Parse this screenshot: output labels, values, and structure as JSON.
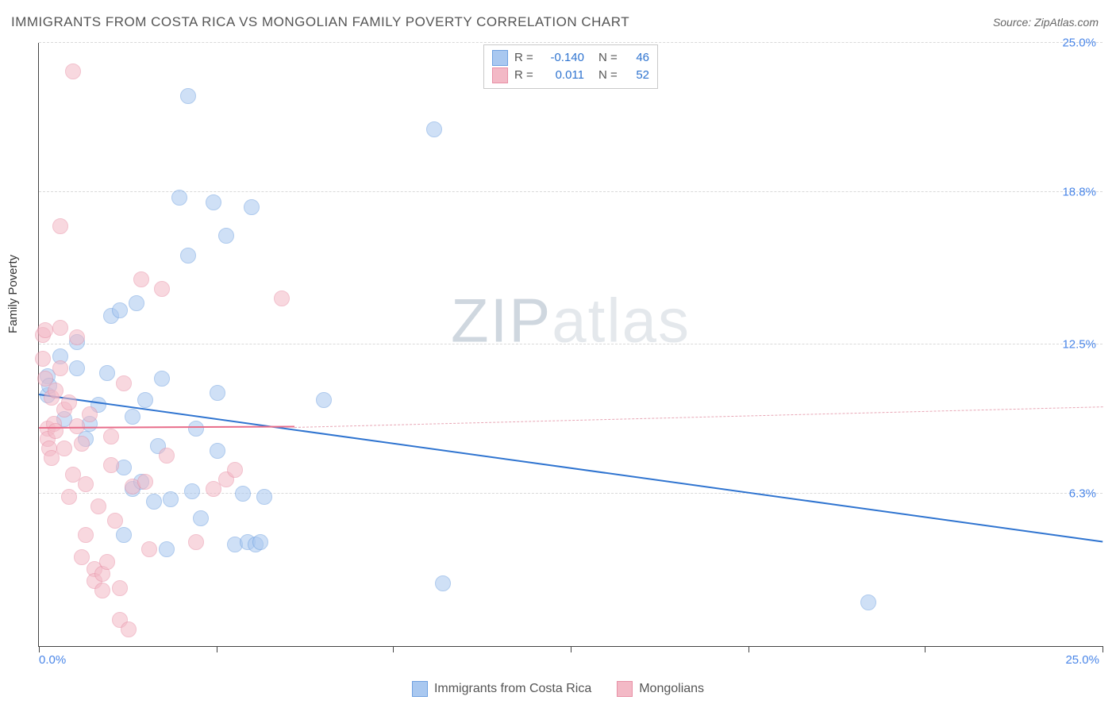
{
  "title": "IMMIGRANTS FROM COSTA RICA VS MONGOLIAN FAMILY POVERTY CORRELATION CHART",
  "source": "Source: ZipAtlas.com",
  "ylabel": "Family Poverty",
  "watermark_a": "ZIP",
  "watermark_b": "atlas",
  "chart": {
    "type": "scatter",
    "background_color": "#ffffff",
    "grid_color": "#d9d9d9",
    "axis_color": "#444444",
    "label_color": "#4a86e8",
    "xlim": [
      0,
      25
    ],
    "ylim": [
      0,
      25
    ],
    "y_ticks": [
      6.3,
      12.5,
      18.8,
      25.0
    ],
    "y_tick_labels": [
      "6.3%",
      "12.5%",
      "18.8%",
      "25.0%"
    ],
    "x_ticks": [
      0,
      4.17,
      8.33,
      12.5,
      16.67,
      20.83,
      25.0
    ],
    "x_min_label": "0.0%",
    "x_max_label": "25.0%",
    "marker_radius": 9,
    "marker_opacity": 0.55,
    "series": [
      {
        "name": "Immigrants from Costa Rica",
        "color_fill": "#a9c8f0",
        "color_stroke": "#6ea0e0",
        "R": "-0.140",
        "N": "46",
        "trend": {
          "x1": 0,
          "y1": 10.4,
          "x2": 25,
          "y2": 4.3,
          "color": "#2f74d0",
          "width": 2,
          "dash": false
        },
        "points": [
          [
            0.2,
            10.4
          ],
          [
            0.2,
            11.2
          ],
          [
            0.25,
            10.8
          ],
          [
            0.5,
            12.0
          ],
          [
            0.9,
            11.5
          ],
          [
            0.9,
            12.6
          ],
          [
            1.1,
            8.6
          ],
          [
            1.2,
            9.2
          ],
          [
            1.7,
            13.7
          ],
          [
            1.6,
            11.3
          ],
          [
            2.0,
            7.4
          ],
          [
            2.0,
            4.6
          ],
          [
            2.2,
            9.5
          ],
          [
            2.2,
            6.5
          ],
          [
            2.3,
            14.2
          ],
          [
            2.5,
            10.2
          ],
          [
            2.7,
            6.0
          ],
          [
            2.8,
            8.3
          ],
          [
            2.9,
            11.1
          ],
          [
            3.0,
            4.0
          ],
          [
            3.1,
            6.1
          ],
          [
            3.3,
            18.6
          ],
          [
            3.5,
            16.2
          ],
          [
            3.5,
            22.8
          ],
          [
            3.6,
            6.4
          ],
          [
            3.7,
            9.0
          ],
          [
            3.8,
            5.3
          ],
          [
            4.1,
            18.4
          ],
          [
            4.2,
            8.1
          ],
          [
            4.2,
            10.5
          ],
          [
            4.4,
            17.0
          ],
          [
            4.6,
            4.2
          ],
          [
            4.8,
            6.3
          ],
          [
            4.9,
            4.3
          ],
          [
            5.0,
            18.2
          ],
          [
            5.1,
            4.2
          ],
          [
            5.2,
            4.3
          ],
          [
            5.3,
            6.2
          ],
          [
            6.7,
            10.2
          ],
          [
            9.3,
            21.4
          ],
          [
            9.5,
            2.6
          ],
          [
            19.5,
            1.8
          ],
          [
            2.4,
            6.8
          ],
          [
            1.4,
            10.0
          ],
          [
            0.6,
            9.4
          ],
          [
            1.9,
            13.9
          ]
        ]
      },
      {
        "name": "Mongolians",
        "color_fill": "#f3b9c6",
        "color_stroke": "#e890a6",
        "R": "0.011",
        "N": "52",
        "trend_solid": {
          "x1": 0,
          "y1": 9.0,
          "x2": 6.0,
          "y2": 9.05,
          "color": "#e86d8a",
          "width": 2,
          "dash": false
        },
        "trend_dash": {
          "x1": 6.0,
          "y1": 9.05,
          "x2": 25,
          "y2": 9.9,
          "color": "#e8a6b5",
          "width": 1,
          "dash": true
        },
        "points": [
          [
            0.1,
            11.9
          ],
          [
            0.1,
            12.9
          ],
          [
            0.15,
            11.1
          ],
          [
            0.15,
            13.1
          ],
          [
            0.2,
            9.0
          ],
          [
            0.2,
            8.6
          ],
          [
            0.25,
            8.2
          ],
          [
            0.3,
            7.8
          ],
          [
            0.3,
            10.3
          ],
          [
            0.35,
            9.2
          ],
          [
            0.4,
            10.6
          ],
          [
            0.4,
            8.9
          ],
          [
            0.5,
            13.2
          ],
          [
            0.5,
            17.4
          ],
          [
            0.6,
            9.8
          ],
          [
            0.6,
            8.2
          ],
          [
            0.7,
            6.2
          ],
          [
            0.8,
            23.8
          ],
          [
            0.8,
            7.1
          ],
          [
            0.9,
            9.1
          ],
          [
            0.9,
            12.8
          ],
          [
            1.0,
            3.7
          ],
          [
            1.0,
            8.4
          ],
          [
            1.1,
            6.7
          ],
          [
            1.1,
            4.6
          ],
          [
            1.2,
            9.6
          ],
          [
            1.3,
            3.2
          ],
          [
            1.3,
            2.7
          ],
          [
            1.4,
            5.8
          ],
          [
            1.5,
            3.0
          ],
          [
            1.5,
            2.3
          ],
          [
            1.6,
            3.5
          ],
          [
            1.7,
            7.5
          ],
          [
            1.7,
            8.7
          ],
          [
            1.8,
            5.2
          ],
          [
            1.9,
            1.1
          ],
          [
            1.9,
            2.4
          ],
          [
            2.0,
            10.9
          ],
          [
            2.1,
            0.7
          ],
          [
            2.2,
            6.6
          ],
          [
            2.4,
            15.2
          ],
          [
            2.5,
            6.8
          ],
          [
            2.6,
            4.0
          ],
          [
            2.9,
            14.8
          ],
          [
            3.0,
            7.9
          ],
          [
            3.7,
            4.3
          ],
          [
            4.1,
            6.5
          ],
          [
            4.4,
            6.9
          ],
          [
            4.6,
            7.3
          ],
          [
            5.7,
            14.4
          ],
          [
            0.5,
            11.5
          ],
          [
            0.7,
            10.1
          ]
        ]
      }
    ],
    "legend_bottom": [
      {
        "label": "Immigrants from Costa Rica",
        "fill": "#a9c8f0",
        "stroke": "#6ea0e0"
      },
      {
        "label": "Mongolians",
        "fill": "#f3b9c6",
        "stroke": "#e890a6"
      }
    ]
  }
}
